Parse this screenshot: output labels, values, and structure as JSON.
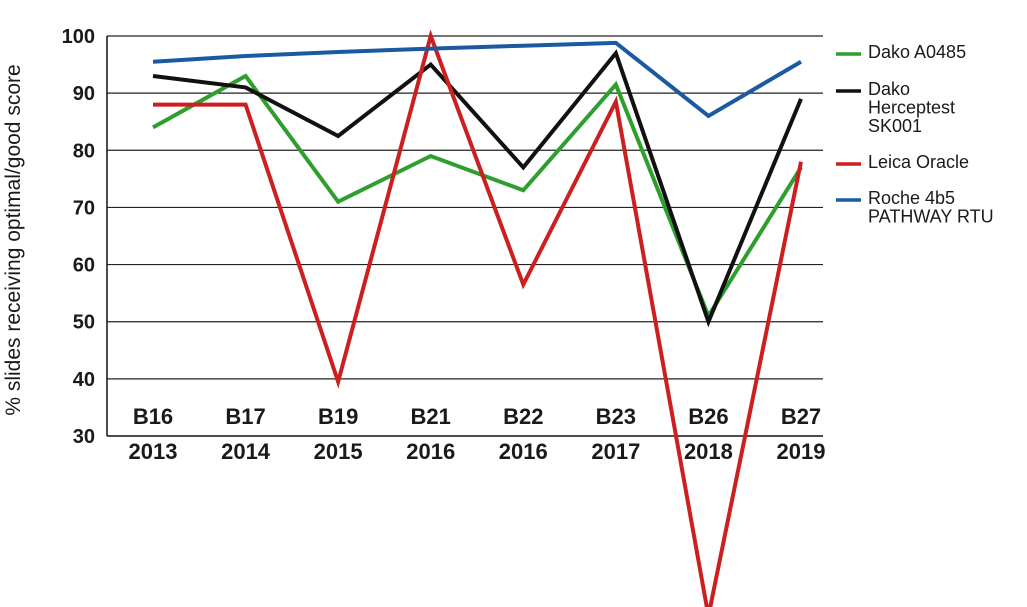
{
  "chart_data": {
    "type": "line",
    "title": "",
    "xlabel": "",
    "ylabel": "% slides receiving optimal/good score",
    "ylim": [
      30,
      100
    ],
    "yticks": [
      "30",
      "40",
      "50",
      "60",
      "70",
      "80",
      "90",
      "100"
    ],
    "categories": [
      {
        "run": "B16",
        "year": "2013"
      },
      {
        "run": "B17",
        "year": "2014"
      },
      {
        "run": "B19",
        "year": "2015"
      },
      {
        "run": "B21",
        "year": "2016"
      },
      {
        "run": "B22",
        "year": "2016"
      },
      {
        "run": "B23",
        "year": "2017"
      },
      {
        "run": "B26",
        "year": "2018"
      },
      {
        "run": "B27",
        "year": "2019"
      }
    ],
    "grid": true,
    "legend_position": "right",
    "series": [
      {
        "name": "Dako A0485",
        "label_lines": [
          "Dako A0485"
        ],
        "color": "#2e9e2e",
        "values": [
          84,
          93,
          71,
          79,
          73,
          91.5,
          51,
          77
        ]
      },
      {
        "name": "Dako Herceptest SK001",
        "label_lines": [
          "Dako",
          "Herceptest",
          "SK001"
        ],
        "color": "#111111",
        "values": [
          93,
          91,
          82.5,
          95,
          77,
          97,
          50,
          89
        ]
      },
      {
        "name": "Leica Oracle",
        "label_lines": [
          "Leica Oracle"
        ],
        "color": "#cc1f1f",
        "values": [
          88,
          88,
          39.5,
          100,
          56.5,
          88.5,
          -1.5,
          78
        ]
      },
      {
        "name": "Roche 4b5 PATHWAY RTU",
        "label_lines": [
          "Roche 4b5",
          "PATHWAY RTU"
        ],
        "color": "#1b5aa0",
        "values": [
          95.5,
          96.5,
          97.2,
          97.8,
          98.3,
          98.8,
          86,
          95.5
        ]
      }
    ]
  }
}
